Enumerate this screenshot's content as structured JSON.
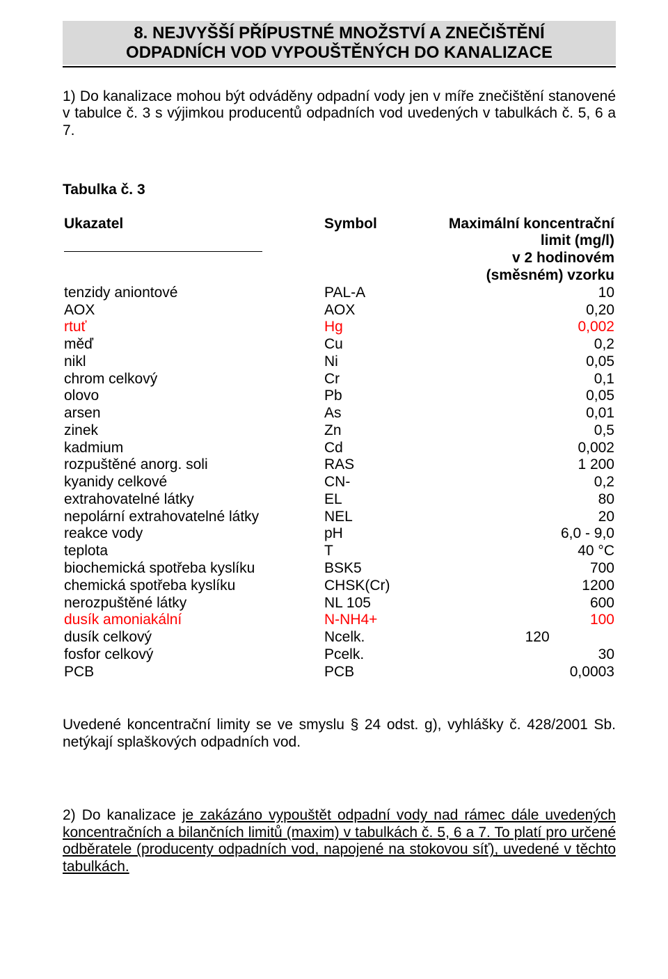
{
  "heading": {
    "line1": "8. NEJVYŠŠÍ  PŘÍPUSTNÉ  MNOŽSTVÍ  A  ZNEČIŠTĚNÍ",
    "line2": "ODPADNÍCH  VOD  VYPOUŠTĚNÝCH  DO  KANALIZACE"
  },
  "para1": "1) Do kanalizace mohou být odváděny odpadní vody jen v míře znečištění stanovené v tabulce č. 3 s výjimkou producentů odpadních vod uvedených v tabulkách č. 5, 6 a 7.",
  "table_label": "Tabulka  č. 3",
  "table_header": {
    "col1": "Ukazatel",
    "col2": "Symbol",
    "col3": "Maximální koncentrační limit (mg/l)",
    "col3_sub": "v 2 hodinovém (směsném) vzorku"
  },
  "rows": [
    {
      "name": "tenzidy aniontové",
      "sym": "PAL-A",
      "val": "10",
      "red": false
    },
    {
      "name": "AOX",
      "sym": "AOX",
      "val": "0,20",
      "red": false
    },
    {
      "name": "rtuť",
      "sym": "Hg",
      "val": "0,002",
      "red": true
    },
    {
      "name": "měď",
      "sym": "Cu",
      "val": "0,2",
      "red": false
    },
    {
      "name": "nikl",
      "sym": "Ni",
      "val": "0,05",
      "red": false
    },
    {
      "name": "chrom  celkový",
      "sym": "Cr",
      "val": "0,1",
      "red": false
    },
    {
      "name": "olovo",
      "sym": "Pb",
      "val": "0,05",
      "red": false
    },
    {
      "name": "arsen",
      "sym": "As",
      "val": "0,01",
      "red": false
    },
    {
      "name": "zinek",
      "sym": "Zn",
      "val": "0,5",
      "red": false
    },
    {
      "name": "kadmium",
      "sym": "Cd",
      "val": "0,002",
      "red": false
    },
    {
      "name": "rozpuštěné anorg. soli",
      "sym": "RAS",
      "val": "1 200",
      "red": false
    },
    {
      "name": "kyanidy celkové",
      "sym": "CN-",
      "val": "0,2",
      "red": false
    },
    {
      "name": "extrahovatelné látky",
      "sym": "EL",
      "val": "80",
      "red": false
    },
    {
      "name": "nepolární extrahovatelné látky",
      "sym": "NEL",
      "val": "20",
      "red": false
    },
    {
      "name": "reakce vody",
      "sym": "pH",
      "val": "6,0 - 9,0",
      "red": false
    },
    {
      "name": "teplota",
      "sym": "T",
      "val": " 40 °C",
      "red": false
    },
    {
      "name": "biochemická  spotřeba kyslíku",
      "sym": "BSK5",
      "val": "700",
      "red": false
    },
    {
      "name": "chemická spotřeba kyslíku",
      "sym": "CHSK(Cr)",
      "val": "1200",
      "red": false
    },
    {
      "name": "nerozpuštěné  látky",
      "sym": "NL 105",
      "val": "600",
      "red": false
    },
    {
      "name": "dusík amoniakální",
      "sym": "N-NH4+",
      "val": "100",
      "red": true
    },
    {
      "name": "dusík celkový",
      "sym": "Ncelk.",
      "val": "120                ",
      "red": false
    },
    {
      "name": "fosfor celkový",
      "sym": "Pcelk.",
      "val": "30",
      "red": false
    },
    {
      "name": "PCB",
      "sym": "PCB",
      "val": " 0,0003",
      "red": false
    }
  ],
  "footnote": "Uvedené koncentrační limity se ve smyslu § 24 odst. g), vyhlášky  č. 428/2001 Sb. netýkají splaškových odpadních vod.",
  "para2": {
    "lead": "2) Do kanalizace ",
    "u1": "je zakázáno vypouštět odpadní vody nad rámec dále uvedených koncentračních a bilančních limitů (maxim) v tabulkách č. 5, 6 a 7. To platí pro určené odběratele (producenty odpadních vod, napojené na stokovou síť), uvedené v těchto tabulkách."
  }
}
